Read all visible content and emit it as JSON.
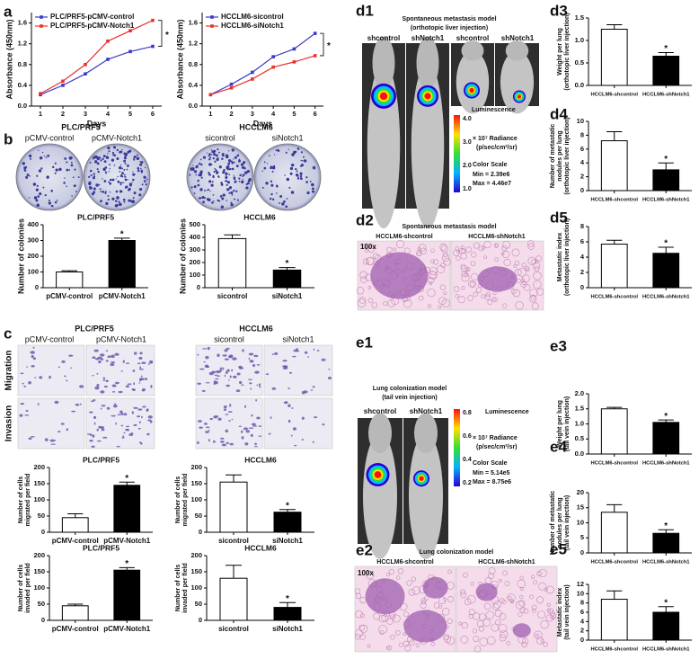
{
  "chart_data": [
    {
      "type": "line",
      "xlabel": "Days",
      "ylabel": [
        "Absorbance (450nm)"
      ],
      "x": [
        1,
        2,
        3,
        4,
        5,
        6
      ],
      "xlim": [
        0.6,
        6.4
      ],
      "xticks": [
        1,
        2,
        3,
        4,
        5,
        6
      ],
      "ylim": [
        0,
        1.8
      ],
      "yticks": [
        {
          "value": 0,
          "label": "0.0"
        },
        0.4,
        0.8,
        1.2,
        1.6
      ],
      "annotation": "*",
      "series": [
        {
          "name": "PLC/PRF5-pCMV-control",
          "color": "#3a3ac8",
          "values": [
            0.22,
            0.4,
            0.62,
            0.9,
            1.05,
            1.15
          ]
        },
        {
          "name": "PLC/PRF5-pCMV-Notch1",
          "color": "#e8312f",
          "values": [
            0.24,
            0.48,
            0.8,
            1.25,
            1.45,
            1.65
          ]
        }
      ]
    },
    {
      "type": "line",
      "xlabel": "Days",
      "ylabel": [
        "Absorbance (450nm)"
      ],
      "x": [
        1,
        2,
        3,
        4,
        5,
        6
      ],
      "xlim": [
        0.6,
        6.4
      ],
      "xticks": [
        1,
        2,
        3,
        4,
        5,
        6
      ],
      "ylim": [
        0,
        1.8
      ],
      "yticks": [
        {
          "value": 0,
          "label": "0.0"
        },
        0.4,
        0.8,
        1.2,
        1.6
      ],
      "annotation": "*",
      "series": [
        {
          "name": "HCCLM6-sicontrol",
          "color": "#3a3ac8",
          "values": [
            0.22,
            0.42,
            0.65,
            0.95,
            1.1,
            1.4
          ]
        },
        {
          "name": "HCCLM6-siNotch1",
          "color": "#e8312f",
          "values": [
            0.22,
            0.35,
            0.52,
            0.75,
            0.85,
            0.97
          ]
        }
      ]
    },
    {
      "type": "bar",
      "title": "PLC/PRF5",
      "ylabel": [
        "Number of colonies"
      ],
      "categories": [
        "pCMV-control",
        "pCMV-Notch1"
      ],
      "values": [
        100,
        300
      ],
      "errors": [
        8,
        15
      ],
      "colors": [
        "#ffffff",
        "#000000"
      ],
      "ylim": [
        0,
        400
      ],
      "yticks": [
        0,
        100,
        200,
        300,
        400
      ],
      "annotation": "*"
    },
    {
      "type": "bar",
      "title": "HCCLM6",
      "ylabel": [
        "Number of colonies"
      ],
      "categories": [
        "sicontrol",
        "siNotch1"
      ],
      "values": [
        390,
        140
      ],
      "errors": [
        30,
        20
      ],
      "colors": [
        "#ffffff",
        "#000000"
      ],
      "ylim": [
        0,
        500
      ],
      "yticks": [
        0,
        100,
        200,
        300,
        400,
        500
      ],
      "annotation": "*"
    },
    {
      "type": "bar",
      "title": "PLC/PRF5",
      "ylabel": [
        "Number of cells",
        "migrated per field"
      ],
      "categories": [
        "pCMV-control",
        "pCMV-Notch1"
      ],
      "values": [
        45,
        145
      ],
      "errors": [
        12,
        10
      ],
      "colors": [
        "#ffffff",
        "#000000"
      ],
      "ylim": [
        0,
        200
      ],
      "yticks": [
        0,
        50,
        100,
        150,
        200
      ],
      "annotation": "*"
    },
    {
      "type": "bar",
      "title": "HCCLM6",
      "ylabel": [
        "Number of cells",
        "migrated per field"
      ],
      "categories": [
        "sicontrol",
        "siNotch1"
      ],
      "values": [
        155,
        62
      ],
      "errors": [
        22,
        8
      ],
      "colors": [
        "#ffffff",
        "#000000"
      ],
      "ylim": [
        0,
        200
      ],
      "yticks": [
        0,
        50,
        100,
        150,
        200
      ],
      "annotation": "*"
    },
    {
      "type": "bar",
      "title": "PLC/PRF5",
      "ylabel": [
        "Number of cells",
        "invaded per field"
      ],
      "categories": [
        "pCMV-control",
        "pCMV-Notch1"
      ],
      "values": [
        45,
        155
      ],
      "errors": [
        5,
        8
      ],
      "colors": [
        "#ffffff",
        "#000000"
      ],
      "ylim": [
        0,
        200
      ],
      "yticks": [
        0,
        50,
        100,
        150,
        200
      ],
      "annotation": "*"
    },
    {
      "type": "bar",
      "title": "HCCLM6",
      "ylabel": [
        "Number of cells",
        "invaded per field"
      ],
      "categories": [
        "sicontrol",
        "siNotch1"
      ],
      "values": [
        130,
        40
      ],
      "errors": [
        40,
        15
      ],
      "colors": [
        "#ffffff",
        "#000000"
      ],
      "ylim": [
        0,
        200
      ],
      "yticks": [
        0,
        50,
        100,
        150,
        200
      ],
      "annotation": "*"
    },
    {
      "type": "bar",
      "ylabel": [
        "Weight per lung",
        "(orthotopic liver injection)"
      ],
      "categories": [
        "HCCLM6-shcontrol",
        "HCCLM6-shNotch1"
      ],
      "values": [
        1.25,
        0.65
      ],
      "errors": [
        0.1,
        0.08
      ],
      "colors": [
        "#ffffff",
        "#000000"
      ],
      "ylim": [
        0,
        1.5
      ],
      "yticks": [
        {
          "value": 0,
          "label": "0.0"
        },
        0.5,
        {
          "value": 1,
          "label": "1.0"
        },
        1.5
      ],
      "annotation": "*"
    },
    {
      "type": "bar",
      "ylabel": [
        "Number of metastatic",
        "nodules per lung",
        "(orthotopic liver injection)"
      ],
      "categories": [
        "HCCLM6-shcontrol",
        "HCCLM6-shNotch1"
      ],
      "values": [
        7.2,
        3
      ],
      "errors": [
        1.3,
        1
      ],
      "colors": [
        "#ffffff",
        "#000000"
      ],
      "ylim": [
        0,
        10
      ],
      "yticks": [
        0,
        2,
        4,
        6,
        8,
        10
      ],
      "annotation": "*"
    },
    {
      "type": "bar",
      "ylabel": [
        "Metastatic index",
        "(orthotopic liver injection)"
      ],
      "categories": [
        "HCCLM6-shcontrol",
        "HCCLM6-shNotch1"
      ],
      "values": [
        5.7,
        4.5
      ],
      "errors": [
        0.5,
        0.8
      ],
      "colors": [
        "#ffffff",
        "#000000"
      ],
      "ylim": [
        0,
        8
      ],
      "yticks": [
        0,
        2,
        4,
        6,
        8
      ],
      "annotation": "*"
    },
    {
      "type": "bar",
      "ylabel": [
        "Weight per lung",
        "(tail vein injection)"
      ],
      "categories": [
        "HCCLM6-shcontrol",
        "HCCLM6-shNotch1"
      ],
      "values": [
        1.5,
        1.05
      ],
      "errors": [
        0.05,
        0.08
      ],
      "colors": [
        "#ffffff",
        "#000000"
      ],
      "ylim": [
        0,
        2
      ],
      "yticks": [
        {
          "value": 0,
          "label": "0.0"
        },
        0.5,
        {
          "value": 1,
          "label": "1.0"
        },
        1.5,
        {
          "value": 2,
          "label": "2.0"
        }
      ],
      "annotation": "*"
    },
    {
      "type": "bar",
      "ylabel": [
        "Number of metastatic",
        "nodules per lung",
        "(tail vein injection)"
      ],
      "categories": [
        "HCCLM6-shcontrol",
        "HCCLM6-shNotch1"
      ],
      "values": [
        13.5,
        6.5
      ],
      "errors": [
        2.5,
        1.2
      ],
      "colors": [
        "#ffffff",
        "#000000"
      ],
      "ylim": [
        0,
        20
      ],
      "yticks": [
        0,
        5,
        10,
        15,
        20
      ],
      "annotation": "*"
    },
    {
      "type": "bar",
      "ylabel": [
        "Metastatic index",
        "(tail vein injection)"
      ],
      "categories": [
        "HCCLM6-shcontrol",
        "HCCLM6-shNotch1"
      ],
      "values": [
        8.8,
        6
      ],
      "errors": [
        1.8,
        1.2
      ],
      "colors": [
        "#ffffff",
        "#000000"
      ],
      "ylim": [
        0,
        12
      ],
      "yticks": [
        0,
        2,
        4,
        6,
        8,
        10,
        12
      ],
      "annotation": "*"
    }
  ],
  "panel_labels": [
    "a",
    "b",
    "c",
    "d1",
    "d2",
    "d3",
    "d4",
    "d5",
    "e1",
    "e2",
    "e3",
    "e4",
    "e5"
  ],
  "texts": [
    "PLC/PRF5",
    "pCMV-control",
    "pCMV-Notch1",
    "HCCLM6",
    "sicontrol",
    "siNotch1",
    "PLC/PRF5",
    "pCMV-control",
    "pCMV-Notch1",
    "HCCLM6",
    "sicontrol",
    "siNotch1",
    "Migration",
    "Invasion",
    "Spontaneous metastasis model",
    "(orthotopic liver injection)",
    "shcontrol",
    "shNotch1",
    "shcontrol",
    "shNotch1",
    "Luminescence",
    "× 10⁷ Radiance",
    "(p/sec/cm²/sr)",
    "Color Scale",
    "Min = 2.39e6",
    "Max = 4.46e7",
    "4.0",
    "3.0",
    "2.0",
    "1.0",
    "Spontaneous metastasis model",
    "HCCLM6-shcontrol",
    "HCCLM6-shNotch1",
    "100x",
    "Lung colonization model",
    "(tail vein injection)",
    "shcontrol",
    "shNotch1",
    "Luminescence",
    "0.8",
    "0.6",
    "0.4",
    "0.2",
    "× 10⁷ Radiance",
    "(p/sec/cm²/sr)",
    "Color Scale",
    "Min = 5.14e5",
    "Max = 8.75e6",
    "Lung colonization model",
    "HCCLM6-shcontrol",
    "HCCLM6-shNotch1",
    "100x"
  ]
}
